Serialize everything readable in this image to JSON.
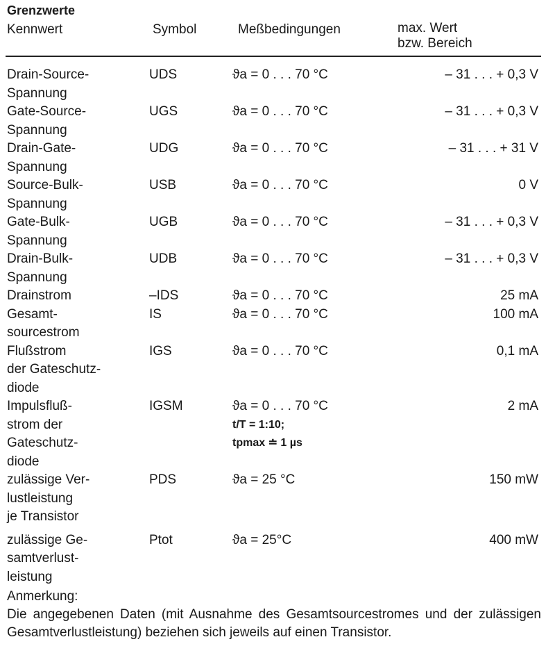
{
  "section_title": "Grenzwerte",
  "headers": {
    "kennwert": "Kennwert",
    "symbol": "Symbol",
    "bedingungen": "Meßbedingungen",
    "wert_1": "max. Wert",
    "wert_2": "bzw. Bereich"
  },
  "rows": [
    {
      "kennwert": [
        "Drain-Source-",
        "Spannung"
      ],
      "symbol": "UDS",
      "bedingungen": [
        "ϑa = 0 . . . 70 °C"
      ],
      "wert": "– 31 . . . + 0,3 V"
    },
    {
      "kennwert": [
        "Gate-Source-",
        "Spannung"
      ],
      "symbol": "UGS",
      "bedingungen": [
        "ϑa = 0 . . . 70 °C"
      ],
      "wert": "– 31 . . . + 0,3 V"
    },
    {
      "kennwert": [
        "Drain-Gate-",
        "Spannung"
      ],
      "symbol": "UDG",
      "bedingungen": [
        "ϑa = 0 . . . 70 °C"
      ],
      "wert": "– 31 . . . + 31 V"
    },
    {
      "kennwert": [
        "Source-Bulk-",
        "Spannung"
      ],
      "symbol": "USB",
      "bedingungen": [
        "ϑa = 0 . . . 70 °C"
      ],
      "wert": "0 V"
    },
    {
      "kennwert": [
        "Gate-Bulk-",
        "Spannung"
      ],
      "symbol": "UGB",
      "bedingungen": [
        "ϑa = 0 . . . 70 °C"
      ],
      "wert": "– 31 . . . + 0,3 V"
    },
    {
      "kennwert": [
        "Drain-Bulk-",
        "Spannung"
      ],
      "symbol": "UDB",
      "bedingungen": [
        "ϑa = 0 . . . 70 °C"
      ],
      "wert": "– 31 . . . + 0,3 V"
    },
    {
      "kennwert": [
        "Drainstrom"
      ],
      "symbol": "–IDS",
      "bedingungen": [
        "ϑa = 0 . . . 70 °C"
      ],
      "wert": "25 mA"
    },
    {
      "kennwert": [
        "Gesamt-",
        "sourcestrom"
      ],
      "symbol": "IS",
      "bedingungen": [
        "ϑa = 0 . . . 70 °C"
      ],
      "wert": "100 mA"
    },
    {
      "kennwert": [
        "Flußstrom",
        "der Gateschutz-",
        "diode"
      ],
      "symbol": "IGS",
      "bedingungen": [
        "ϑa = 0 . . . 70 °C"
      ],
      "wert": "0,1 mA"
    },
    {
      "kennwert": [
        "Impulsfluß-",
        "strom der",
        "Gateschutz-",
        "diode"
      ],
      "symbol": "IGSM",
      "bedingungen": [
        "ϑa = 0 . . . 70 °C",
        "t/T = 1:10;",
        "tpmax ≐ 1 µs"
      ],
      "wert": "2 mA"
    },
    {
      "kennwert": [
        "zulässige Ver-",
        "lustleistung",
        "je Transistor"
      ],
      "symbol": "PDS",
      "bedingungen": [
        "ϑa = 25 °C"
      ],
      "wert": "150 mW"
    },
    {
      "kennwert": [
        "zulässige Ge-",
        "samtverlust-",
        "leistung"
      ],
      "symbol": "Ptot",
      "bedingungen": [
        "ϑa = 25°C"
      ],
      "wert": "400 mW"
    }
  ],
  "note": {
    "title": "Anmerkung:",
    "text": "Die angegebenen Daten (mit Ausnahme des Gesamtsourcestromes und der zulässigen Gesamtverlustleistung) beziehen sich jeweils auf einen Transistor."
  }
}
